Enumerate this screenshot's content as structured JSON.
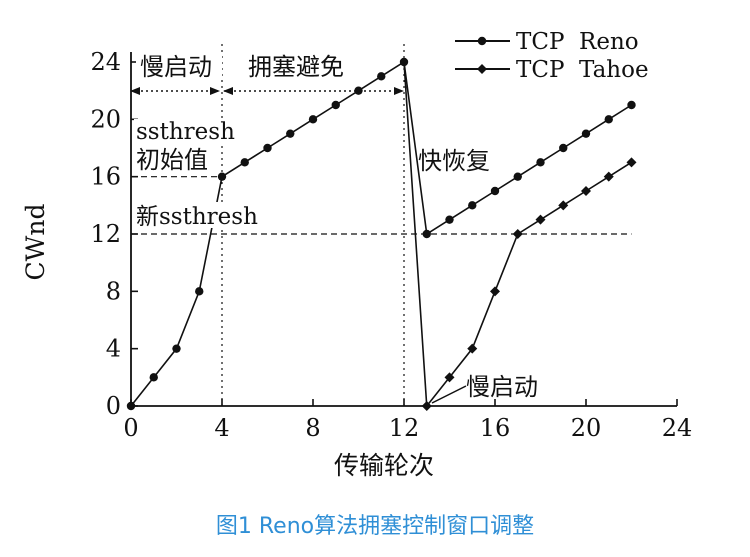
{
  "caption": "图1 Reno算法拥塞控制窗口调整",
  "chart_data": {
    "type": "line",
    "xlabel": "传输轮次",
    "ylabel": "CWnd",
    "xlim": [
      0,
      24
    ],
    "ylim": [
      0,
      24
    ],
    "xticks": [
      0,
      4,
      8,
      12,
      16,
      20,
      24
    ],
    "yticks": [
      0,
      4,
      8,
      12,
      16,
      20,
      24
    ],
    "grid": false,
    "legend_position": "top-right",
    "series": [
      {
        "name": "TCP  Reno",
        "marker": "circle",
        "x": [
          0,
          1,
          2,
          3,
          4,
          5,
          6,
          7,
          8,
          9,
          10,
          11,
          12,
          13,
          14,
          15,
          16,
          17,
          18,
          19,
          20,
          21,
          22
        ],
        "y": [
          0,
          2,
          4,
          8,
          16,
          17,
          18,
          19,
          20,
          21,
          22,
          23,
          24,
          12,
          13,
          14,
          15,
          16,
          17,
          18,
          19,
          20,
          21
        ]
      },
      {
        "name": "TCP  Tahoe",
        "marker": "diamond",
        "x": [
          12,
          13,
          14,
          15,
          16,
          17,
          18,
          19,
          20,
          21,
          22
        ],
        "y": [
          24,
          0,
          2,
          4,
          8,
          12,
          13,
          14,
          15,
          16,
          17
        ]
      }
    ],
    "reference_lines": [
      {
        "type": "h",
        "y": 16,
        "x": [
          0,
          4
        ]
      },
      {
        "type": "h",
        "y": 12,
        "x": [
          0,
          22
        ]
      },
      {
        "type": "v",
        "x": 4,
        "y": [
          0,
          24
        ]
      },
      {
        "type": "v",
        "x": 12,
        "y": [
          0,
          24
        ]
      }
    ],
    "phase_labels": [
      {
        "text": "慢启动",
        "x_from": 0,
        "x_to": 4
      },
      {
        "text": "拥塞避免",
        "x_from": 4,
        "x_to": 12
      }
    ],
    "annotations": {
      "ssthresh": "ssthresh",
      "initial": "初始值",
      "new_ssthresh": "新ssthresh",
      "fast_recovery": "快恢复",
      "slow_start_again": "慢启动"
    }
  }
}
